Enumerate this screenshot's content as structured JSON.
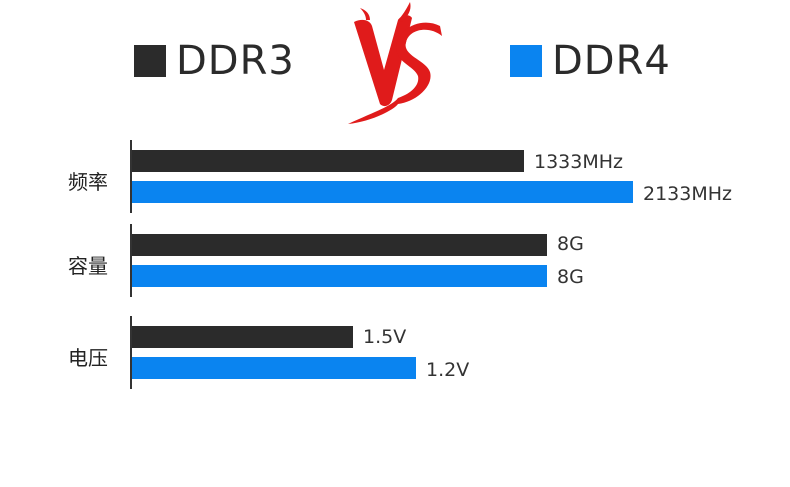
{
  "legend": [
    {
      "name": "DDR3",
      "color": "#2b2b2b"
    },
    {
      "name": "DDR4",
      "color": "#0a84f0"
    }
  ],
  "logo": {
    "text": "VS",
    "color": "#e01b1b"
  },
  "chart_data": {
    "type": "bar",
    "orientation": "horizontal",
    "categories": [
      "频率",
      "容量",
      "电压"
    ],
    "series": [
      {
        "name": "DDR3",
        "values": [
          "1333MHz",
          "8G",
          "1.5V"
        ],
        "numeric": [
          1333,
          8,
          1.5
        ]
      },
      {
        "name": "DDR4",
        "values": [
          "2133MHz",
          "8G",
          "1.2V"
        ],
        "numeric": [
          2133,
          8,
          1.2
        ]
      }
    ],
    "title": "",
    "xlabel": "",
    "ylabel": "",
    "grid": false,
    "legend_position": "top"
  }
}
